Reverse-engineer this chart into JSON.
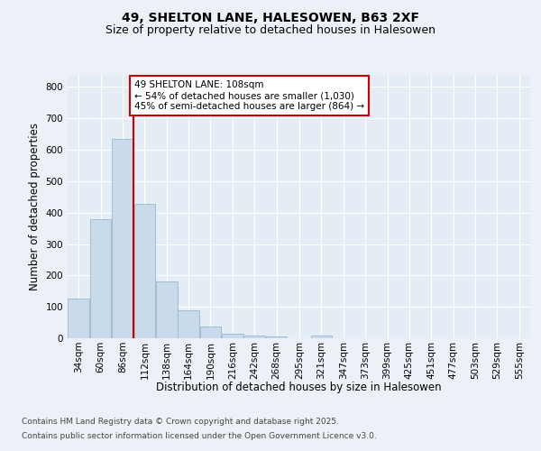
{
  "title1": "49, SHELTON LANE, HALESOWEN, B63 2XF",
  "title2": "Size of property relative to detached houses in Halesowen",
  "xlabel": "Distribution of detached houses by size in Halesowen",
  "ylabel": "Number of detached properties",
  "annotation_title": "49 SHELTON LANE: 108sqm",
  "annotation_line1": "← 54% of detached houses are smaller (1,030)",
  "annotation_line2": "45% of semi-detached houses are larger (864) →",
  "bin_labels": [
    "34sqm",
    "60sqm",
    "86sqm",
    "112sqm",
    "138sqm",
    "164sqm",
    "190sqm",
    "216sqm",
    "242sqm",
    "268sqm",
    "295sqm",
    "321sqm",
    "347sqm",
    "373sqm",
    "399sqm",
    "425sqm",
    "451sqm",
    "477sqm",
    "503sqm",
    "529sqm",
    "555sqm"
  ],
  "bin_left_edges": [
    34,
    60,
    86,
    112,
    138,
    164,
    190,
    216,
    242,
    268,
    295,
    321,
    347,
    373,
    399,
    425,
    451,
    477,
    503,
    529,
    555
  ],
  "bin_width": 26,
  "bar_heights": [
    125,
    378,
    635,
    428,
    180,
    90,
    38,
    14,
    10,
    7,
    0,
    8,
    0,
    0,
    0,
    0,
    0,
    0,
    0,
    0,
    0
  ],
  "bar_color": "#c9daea",
  "bar_edge_color": "#9ab8cf",
  "vline_color": "#cc0000",
  "vline_x": 112,
  "ylim": [
    0,
    840
  ],
  "yticks": [
    0,
    100,
    200,
    300,
    400,
    500,
    600,
    700,
    800
  ],
  "bg_color": "#edf1f7",
  "plot_bg_color": "#e4ecf5",
  "grid_color": "#ffffff",
  "footer_line1": "Contains HM Land Registry data © Crown copyright and database right 2025.",
  "footer_line2": "Contains public sector information licensed under the Open Government Licence v3.0.",
  "annotation_box_color": "#cc0000",
  "title1_fontsize": 10,
  "title2_fontsize": 9,
  "annotation_fontsize": 7.5,
  "axis_label_fontsize": 8.5,
  "tick_fontsize": 7.5,
  "footer_fontsize": 6.5
}
